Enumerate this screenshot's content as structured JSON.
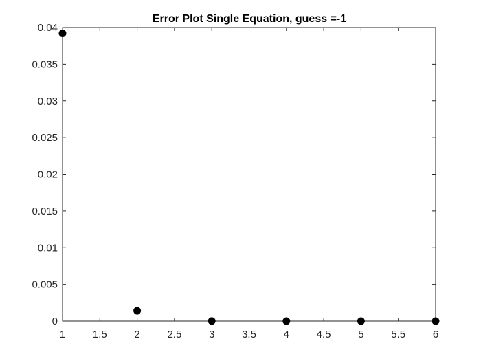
{
  "chart_data": {
    "type": "scatter",
    "title": "Error Plot Single Equation, guess =-1",
    "xlabel": "",
    "ylabel": "",
    "xlim": [
      1,
      6
    ],
    "ylim": [
      0,
      0.04
    ],
    "xticks": [
      1,
      1.5,
      2,
      2.5,
      3,
      3.5,
      4,
      4.5,
      5,
      5.5,
      6
    ],
    "xtick_labels": [
      "1",
      "1.5",
      "2",
      "2.5",
      "3",
      "3.5",
      "4",
      "4.5",
      "5",
      "5.5",
      "6"
    ],
    "yticks": [
      0,
      0.005,
      0.01,
      0.015,
      0.02,
      0.025,
      0.03,
      0.035,
      0.04
    ],
    "ytick_labels": [
      "0",
      "0.005",
      "0.01",
      "0.015",
      "0.02",
      "0.025",
      "0.03",
      "0.035",
      "0.04"
    ],
    "grid": false,
    "marker_color": "#000000",
    "axis_color": "#262626",
    "series": [
      {
        "x": [
          1,
          2,
          3,
          4,
          5,
          6
        ],
        "y": [
          0.0392,
          0.0014,
          1e-05,
          0.0,
          0.0,
          0.0
        ]
      }
    ]
  }
}
